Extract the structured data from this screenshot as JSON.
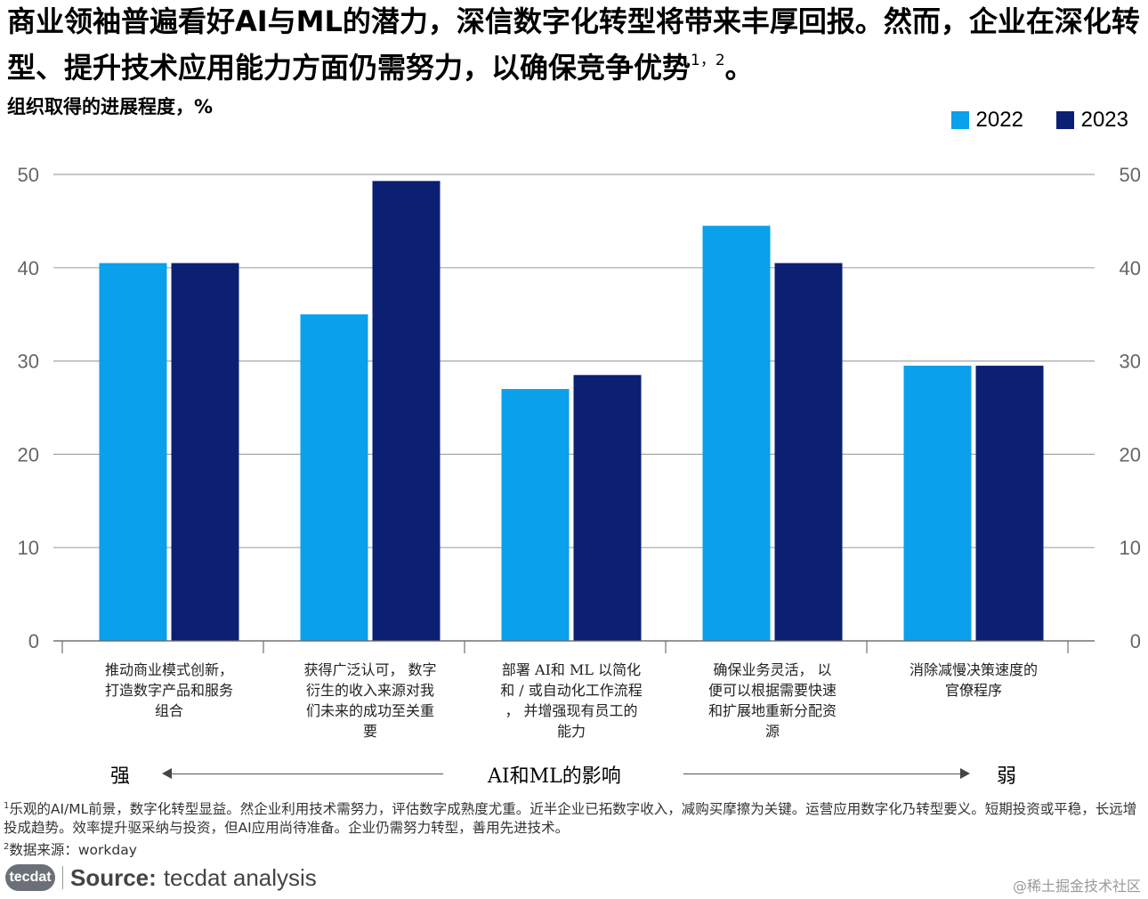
{
  "title": {
    "text": "商业领袖普遍看好AI与ML的潜力，深信数字化转型将带来丰厚回报。然而，企业在深化转型、提升技术应用能力方面仍需努力，以确保竞争优势",
    "sup": "1，2",
    "end": "。"
  },
  "subtitle": "组织取得的进展程度，%",
  "colors": {
    "series_2022": "#0aa0eb",
    "series_2023": "#0b1f73",
    "grid": "#a6a6a6",
    "axis_text": "#666666"
  },
  "chart_data": {
    "type": "bar",
    "categories": [
      "推动商业模式创新，打造数字产品和服务组合",
      "获得广泛认可， 数字衍生的收入来源对我们未来的成功至关重要",
      "部署 AI和 ML 以简化和/或自动化工作流程， 并增强现有员工的能力",
      "确保业务灵活， 以便可以根据需要快速和扩展地重新分配资源",
      "消除减慢决策速度的官僚程序"
    ],
    "category_lines": [
      [
        "推动商业模式创新，",
        "打造数字产品和服务",
        "组合"
      ],
      [
        "获得广泛认可， 数字",
        "衍生的收入来源对我",
        "们未来的成功至关重",
        "要"
      ],
      [
        "部署 AI和 ML 以简化",
        "和 / 或自动化工作流程",
        "， 并增强现有员工的",
        "能力"
      ],
      [
        "确保业务灵活， 以",
        "便可以根据需要快速",
        "和扩展地重新分配资",
        "源"
      ],
      [
        "消除减慢决策速度的",
        "官僚程序"
      ]
    ],
    "series": [
      {
        "name": "2022",
        "values": [
          40.5,
          35,
          27,
          44.5,
          29.5
        ]
      },
      {
        "name": "2023",
        "values": [
          40.5,
          49.3,
          28.5,
          40.5,
          29.5
        ]
      }
    ],
    "yticks": [
      0,
      10,
      20,
      30,
      40,
      50
    ],
    "ylim": [
      0,
      50
    ],
    "grid": true,
    "legend_position": "top-right",
    "dual_y_axis_labels": true
  },
  "impact": {
    "strong": "强",
    "label": "AI和ML的影响",
    "weak": "弱"
  },
  "footnotes": [
    {
      "num": "1",
      "text": "乐观的AI/ML前景，数字化转型显益。然企业利用技术需努力，评估数字成熟度尤重。近半企业已拓数字收入，减购买摩擦为关键。运营应用数字化乃转型要义。短期投资或平稳，长远增投成趋势。效率提升驱采纳与投资，但AI应用尚待准备。企业仍需努力转型，善用先进技术。"
    },
    {
      "num": "2",
      "text": "数据来源：workday"
    }
  ],
  "logo_text": "tecdat",
  "source": {
    "label": "Source:",
    "text": "tecdat analysis"
  },
  "watermark": "@稀土掘金技术社区"
}
